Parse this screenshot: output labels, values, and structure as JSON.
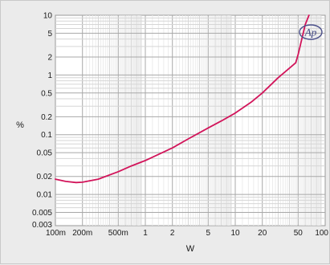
{
  "chart_data": {
    "type": "line",
    "title": "",
    "xlabel": "W",
    "ylabel": "%",
    "x_scale": "log",
    "y_scale": "log",
    "xlim": [
      0.1,
      100
    ],
    "ylim": [
      0.003,
      10
    ],
    "grid": true,
    "x_ticks": [
      {
        "value": 0.1,
        "label": "100m"
      },
      {
        "value": 0.2,
        "label": "200m"
      },
      {
        "value": 0.5,
        "label": "500m"
      },
      {
        "value": 1,
        "label": "1"
      },
      {
        "value": 2,
        "label": "2"
      },
      {
        "value": 5,
        "label": "5"
      },
      {
        "value": 10,
        "label": "10"
      },
      {
        "value": 20,
        "label": "20"
      },
      {
        "value": 50,
        "label": "50"
      },
      {
        "value": 100,
        "label": "100"
      }
    ],
    "y_ticks": [
      {
        "value": 10,
        "label": "10"
      },
      {
        "value": 5,
        "label": "5"
      },
      {
        "value": 2,
        "label": "2"
      },
      {
        "value": 1,
        "label": "1"
      },
      {
        "value": 0.5,
        "label": "0.5"
      },
      {
        "value": 0.2,
        "label": "0.2"
      },
      {
        "value": 0.1,
        "label": "0.1"
      },
      {
        "value": 0.05,
        "label": "0.05"
      },
      {
        "value": 0.02,
        "label": "0.02"
      },
      {
        "value": 0.01,
        "label": "0.01"
      },
      {
        "value": 0.005,
        "label": "0.005"
      },
      {
        "value": 0.003,
        "label": "0.003"
      }
    ],
    "series": [
      {
        "color": "#d2145a",
        "x": [
          0.1,
          0.13,
          0.17,
          0.2,
          0.3,
          0.5,
          0.7,
          1,
          2,
          3,
          5,
          7,
          10,
          15,
          20,
          30,
          40,
          47,
          50,
          55,
          60,
          66
        ],
        "y": [
          0.018,
          0.0165,
          0.0158,
          0.016,
          0.018,
          0.024,
          0.03,
          0.037,
          0.06,
          0.085,
          0.13,
          0.17,
          0.23,
          0.35,
          0.5,
          0.9,
          1.3,
          1.6,
          2.2,
          4.0,
          7.0,
          10.0
        ]
      }
    ],
    "logo": "Ap"
  }
}
